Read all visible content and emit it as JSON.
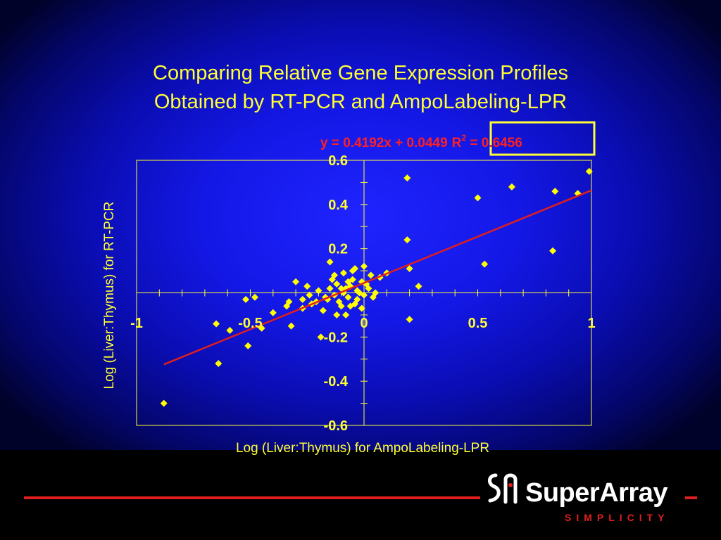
{
  "title_line1": "Comparing Relative Gene Expression Profiles",
  "title_line2": "Obtained by RT-PCR and AmpoLabeling-LPR",
  "logo": {
    "name": "SuperArray",
    "tagline": "SIMPLICITY"
  },
  "colors": {
    "background": "#1418e6",
    "text": "#ffff33",
    "points": "#ffff00",
    "trendline": "#e01e1e",
    "equation": "#ff2020"
  },
  "chart_data": {
    "type": "scatter",
    "xlabel": "Log (Liver:Thymus) for AmpoLabeling-LPR",
    "ylabel": "Log (Liver:Thymus) for RT-PCR",
    "xlim": [
      -1,
      1
    ],
    "ylim": [
      -0.6,
      0.6
    ],
    "x_ticks": [
      "-1",
      "-0.5",
      "0",
      "0.5",
      "1"
    ],
    "y_ticks": [
      "0.6",
      "0.4",
      "0.2",
      "-0.2",
      "-0.4",
      "-0.6"
    ],
    "grid": false,
    "trendline": {
      "slope": 0.4192,
      "intercept": 0.0449,
      "x_range": [
        -0.88,
        1
      ]
    },
    "equation_text": "y = 0.4192x + 0.0449",
    "r2_text": "R",
    "r2_sup": "2",
    "r2_value_text": " = 0.6456",
    "series": [
      {
        "points": [
          [
            -0.88,
            -0.5
          ],
          [
            -0.64,
            -0.32
          ],
          [
            -0.65,
            -0.14
          ],
          [
            -0.59,
            -0.17
          ],
          [
            -0.51,
            -0.24
          ],
          [
            -0.52,
            -0.03
          ],
          [
            -0.48,
            -0.02
          ],
          [
            -0.45,
            -0.16
          ],
          [
            -0.4,
            -0.09
          ],
          [
            -0.32,
            -0.15
          ],
          [
            -0.34,
            -0.06
          ],
          [
            -0.33,
            -0.04
          ],
          [
            -0.3,
            0.05
          ],
          [
            -0.27,
            -0.03
          ],
          [
            -0.25,
            0.03
          ],
          [
            -0.24,
            -0.01
          ],
          [
            -0.21,
            -0.04
          ],
          [
            -0.18,
            -0.08
          ],
          [
            -0.2,
            0.01
          ],
          [
            -0.16,
            -0.03
          ],
          [
            -0.15,
            0.02
          ],
          [
            -0.13,
            -0.01
          ],
          [
            -0.12,
            0.04
          ],
          [
            -0.11,
            -0.04
          ],
          [
            -0.09,
            0.0
          ],
          [
            -0.08,
            0.02
          ],
          [
            -0.07,
            -0.02
          ],
          [
            -0.06,
            0.03
          ],
          [
            -0.05,
            0.06
          ],
          [
            -0.03,
            -0.03
          ],
          [
            -0.02,
            0.0
          ],
          [
            -0.01,
            0.05
          ],
          [
            0.0,
            -0.01
          ],
          [
            0.02,
            0.02
          ],
          [
            0.03,
            0.08
          ],
          [
            0.05,
            0.0
          ],
          [
            -0.17,
            -0.02
          ],
          [
            -0.14,
            0.06
          ],
          [
            -0.1,
            -0.06
          ],
          [
            -0.04,
            -0.05
          ],
          [
            -0.01,
            -0.07
          ],
          [
            -0.06,
            -0.06
          ],
          [
            -0.13,
            0.08
          ],
          [
            -0.09,
            0.09
          ],
          [
            -0.04,
            0.11
          ],
          [
            -0.15,
            0.14
          ],
          [
            -0.05,
            0.1
          ],
          [
            0.0,
            0.12
          ],
          [
            0.07,
            0.07
          ],
          [
            0.1,
            0.09
          ],
          [
            -0.08,
            -0.1
          ],
          [
            -0.19,
            -0.2
          ],
          [
            -0.12,
            -0.1
          ],
          [
            -0.23,
            -0.05
          ],
          [
            -0.27,
            -0.07
          ],
          [
            -0.03,
            0.01
          ],
          [
            -0.1,
            0.02
          ],
          [
            0.01,
            0.04
          ],
          [
            -0.07,
            0.05
          ],
          [
            0.04,
            -0.02
          ],
          [
            0.19,
            0.52
          ],
          [
            0.19,
            0.24
          ],
          [
            0.2,
            0.11
          ],
          [
            0.24,
            0.03
          ],
          [
            0.2,
            -0.12
          ],
          [
            0.5,
            0.43
          ],
          [
            0.53,
            0.13
          ],
          [
            0.65,
            0.48
          ],
          [
            0.83,
            0.19
          ],
          [
            0.84,
            0.46
          ],
          [
            0.94,
            0.45
          ],
          [
            0.99,
            0.55
          ]
        ]
      }
    ]
  }
}
